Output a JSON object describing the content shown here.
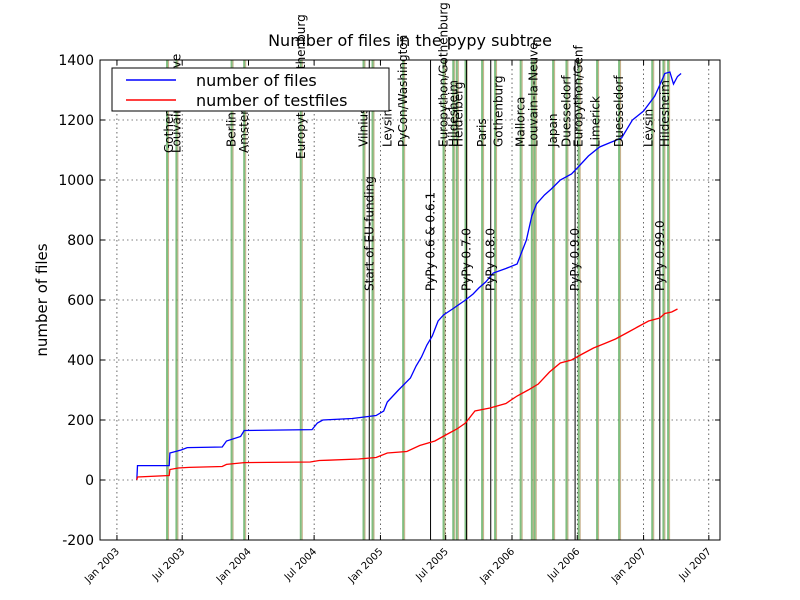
{
  "chart_data": {
    "type": "line",
    "title": "Number of files in the pypy subtree",
    "xlabel": "",
    "ylabel": "number of files",
    "ylim": [
      -200,
      1400
    ],
    "yticks": [
      -200,
      0,
      200,
      400,
      600,
      800,
      1000,
      1200,
      1400
    ],
    "xticks": [
      {
        "date": "2003-01-01",
        "label": "Jan 2003"
      },
      {
        "date": "2003-07-01",
        "label": "Jul 2003"
      },
      {
        "date": "2004-01-01",
        "label": "Jan 2004"
      },
      {
        "date": "2004-07-01",
        "label": "Jul 2004"
      },
      {
        "date": "2005-01-01",
        "label": "Jan 2005"
      },
      {
        "date": "2005-07-01",
        "label": "Jul 2005"
      },
      {
        "date": "2006-01-01",
        "label": "Jan 2006"
      },
      {
        "date": "2006-07-01",
        "label": "Jul 2006"
      },
      {
        "date": "2007-01-01",
        "label": "Jan 2007"
      },
      {
        "date": "2007-07-01",
        "label": "Jul 2007"
      }
    ],
    "xlim": [
      "2002-11-15",
      "2007-08-01"
    ],
    "grid": true,
    "legend_position": "top-left",
    "series": [
      {
        "name": "number of files",
        "color": "#0000ff",
        "points": [
          [
            "2003-02-25",
            0
          ],
          [
            "2003-02-27",
            48
          ],
          [
            "2003-05-26",
            48
          ],
          [
            "2003-05-28",
            90
          ],
          [
            "2003-06-28",
            100
          ],
          [
            "2003-07-15",
            108
          ],
          [
            "2003-10-20",
            110
          ],
          [
            "2003-11-01",
            130
          ],
          [
            "2003-12-10",
            145
          ],
          [
            "2003-12-20",
            165
          ],
          [
            "2004-06-25",
            168
          ],
          [
            "2004-07-10",
            190
          ],
          [
            "2004-07-25",
            200
          ],
          [
            "2004-10-15",
            205
          ],
          [
            "2004-12-20",
            215
          ],
          [
            "2005-01-10",
            230
          ],
          [
            "2005-01-20",
            260
          ],
          [
            "2005-02-20",
            300
          ],
          [
            "2005-03-25",
            340
          ],
          [
            "2005-04-10",
            380
          ],
          [
            "2005-04-25",
            410
          ],
          [
            "2005-05-10",
            450
          ],
          [
            "2005-05-25",
            480
          ],
          [
            "2005-06-10",
            530
          ],
          [
            "2005-06-25",
            550
          ],
          [
            "2005-07-20",
            570
          ],
          [
            "2005-08-25",
            600
          ],
          [
            "2005-09-15",
            620
          ],
          [
            "2005-10-01",
            640
          ],
          [
            "2005-10-20",
            660
          ],
          [
            "2005-11-10",
            690
          ],
          [
            "2005-12-15",
            705
          ],
          [
            "2006-01-15",
            720
          ],
          [
            "2006-02-10",
            800
          ],
          [
            "2006-02-25",
            880
          ],
          [
            "2006-03-10",
            920
          ],
          [
            "2006-04-01",
            950
          ],
          [
            "2006-04-20",
            970
          ],
          [
            "2006-05-15",
            1000
          ],
          [
            "2006-06-15",
            1020
          ],
          [
            "2006-07-01",
            1040
          ],
          [
            "2006-08-01",
            1080
          ],
          [
            "2006-09-01",
            1110
          ],
          [
            "2006-10-01",
            1125
          ],
          [
            "2006-11-01",
            1140
          ],
          [
            "2006-12-01",
            1200
          ],
          [
            "2007-01-01",
            1230
          ],
          [
            "2007-02-01",
            1280
          ],
          [
            "2007-02-20",
            1330
          ],
          [
            "2007-03-01",
            1355
          ],
          [
            "2007-03-15",
            1360
          ],
          [
            "2007-03-25",
            1320
          ],
          [
            "2007-04-05",
            1345
          ],
          [
            "2007-04-15",
            1355
          ]
        ]
      },
      {
        "name": "number of testfiles",
        "color": "#ff0000",
        "points": [
          [
            "2003-02-25",
            0
          ],
          [
            "2003-02-27",
            10
          ],
          [
            "2003-05-26",
            15
          ],
          [
            "2003-05-28",
            35
          ],
          [
            "2003-06-20",
            40
          ],
          [
            "2003-07-20",
            42
          ],
          [
            "2003-10-20",
            45
          ],
          [
            "2003-11-01",
            52
          ],
          [
            "2003-12-20",
            58
          ],
          [
            "2004-06-20",
            60
          ],
          [
            "2004-07-15",
            65
          ],
          [
            "2004-08-10",
            66
          ],
          [
            "2004-11-01",
            70
          ],
          [
            "2004-12-20",
            75
          ],
          [
            "2005-01-20",
            90
          ],
          [
            "2005-03-15",
            95
          ],
          [
            "2005-04-20",
            115
          ],
          [
            "2005-06-01",
            130
          ],
          [
            "2005-07-01",
            150
          ],
          [
            "2005-08-01",
            170
          ],
          [
            "2005-08-25",
            190
          ],
          [
            "2005-09-20",
            230
          ],
          [
            "2005-11-01",
            240
          ],
          [
            "2005-12-15",
            255
          ],
          [
            "2006-01-15",
            280
          ],
          [
            "2006-02-15",
            300
          ],
          [
            "2006-03-15",
            320
          ],
          [
            "2006-04-15",
            360
          ],
          [
            "2006-05-15",
            390
          ],
          [
            "2006-06-15",
            400
          ],
          [
            "2006-07-15",
            420
          ],
          [
            "2006-08-15",
            440
          ],
          [
            "2006-09-15",
            455
          ],
          [
            "2006-10-15",
            470
          ],
          [
            "2006-11-15",
            490
          ],
          [
            "2006-12-15",
            510
          ],
          [
            "2007-01-15",
            530
          ],
          [
            "2007-02-15",
            540
          ],
          [
            "2007-03-01",
            555
          ],
          [
            "2007-03-20",
            560
          ],
          [
            "2007-04-05",
            570
          ]
        ]
      }
    ],
    "events_green": [
      {
        "date": "2003-05-25",
        "label": "Gothenburg",
        "y": 1090
      },
      {
        "date": "2003-06-15",
        "label": "LouvainLaNeuve",
        "y": 1090
      },
      {
        "date": "2003-11-15",
        "label": "Berlin",
        "y": 1110
      },
      {
        "date": "2003-12-20",
        "label": "Amsterdam",
        "y": 1090
      },
      {
        "date": "2004-05-25",
        "label": "Europython/Gothenburg",
        "y": 1070
      },
      {
        "date": "2004-11-15",
        "label": "Vilnius",
        "y": 1110
      },
      {
        "date": "2005-01-20",
        "label": "Leysin",
        "y": 1110
      },
      {
        "date": "2005-03-05",
        "label": "PyCon/Washington",
        "y": 1110
      },
      {
        "date": "2005-06-25",
        "label": "Europython/Gothenburg",
        "y": 1110
      },
      {
        "date": "2005-07-22",
        "label": "Hildesheim",
        "y": 1110
      },
      {
        "date": "2005-08-05",
        "label": "Heidelberg",
        "y": 1110
      },
      {
        "date": "2005-10-10",
        "label": "Paris",
        "y": 1110
      },
      {
        "date": "2005-11-25",
        "label": "Gothenburg",
        "y": 1110
      },
      {
        "date": "2006-01-25",
        "label": "Mallorca",
        "y": 1110
      },
      {
        "date": "2006-03-01",
        "label": "Louvain-la-Neuve",
        "y": 1110
      },
      {
        "date": "2006-04-25",
        "label": "Japan",
        "y": 1110
      },
      {
        "date": "2006-06-01",
        "label": "Duesseldorf",
        "y": 1110
      },
      {
        "date": "2006-07-05",
        "label": "Europython/Genf",
        "y": 1110
      },
      {
        "date": "2006-08-20",
        "label": "Limerick",
        "y": 1110
      },
      {
        "date": "2006-10-25",
        "label": "Duesseldorf",
        "y": 1110
      },
      {
        "date": "2007-01-15",
        "label": "Leysin",
        "y": 1110
      },
      {
        "date": "2007-03-01",
        "label": "Hildesheim",
        "y": 1110
      }
    ],
    "events_black": [
      {
        "date": "2004-12-01",
        "label": "Start of EU-funding",
        "y": 630
      },
      {
        "date": "2005-05-20",
        "label": "PyPy 0.6 & 0.6.1",
        "y": 630
      },
      {
        "date": "2005-08-28",
        "label": "PyPy 0.7.0",
        "y": 630
      },
      {
        "date": "2005-11-03",
        "label": "PyPy 0.8.0",
        "y": 630
      },
      {
        "date": "2006-06-25",
        "label": "PyPy 0.9.0",
        "y": 630
      },
      {
        "date": "2007-02-15",
        "label": "PyPy 0.99.0",
        "y": 630
      }
    ],
    "events_green_lines": [
      "2003-05-20",
      "2003-06-15",
      "2003-11-15",
      "2003-12-20",
      "2004-05-25",
      "2004-11-15",
      "2004-12-10",
      "2005-03-05",
      "2005-06-25",
      "2005-07-22",
      "2005-08-01",
      "2005-08-25",
      "2005-10-10",
      "2005-11-15",
      "2006-01-25",
      "2006-02-25",
      "2006-03-05",
      "2006-04-25",
      "2006-06-01",
      "2006-07-05",
      "2006-08-25",
      "2006-10-25",
      "2007-01-25",
      "2007-02-25",
      "2007-03-10"
    ]
  }
}
